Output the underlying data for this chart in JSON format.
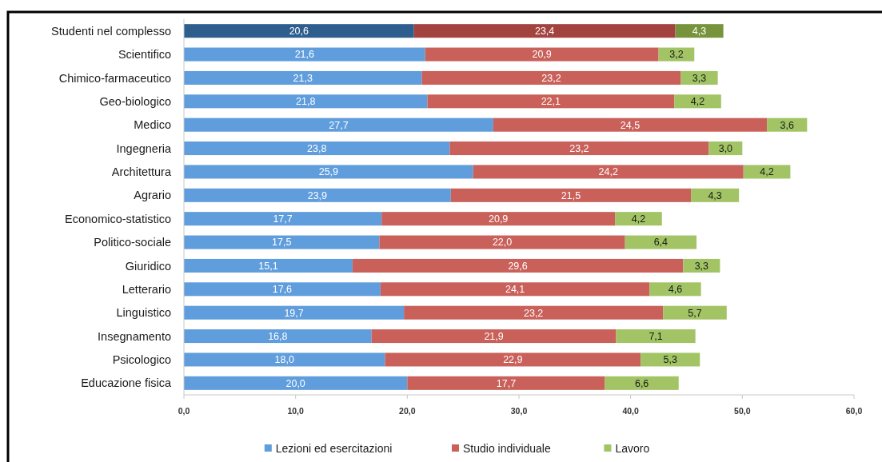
{
  "chart_data": {
    "type": "bar",
    "orientation": "horizontal",
    "stacked": true,
    "categories": [
      "Studenti nel complesso",
      "Scientifico",
      "Chimico-farmaceutico",
      "Geo-biologico",
      "Medico",
      "Ingegneria",
      "Architettura",
      "Agrario",
      "Economico-statistico",
      "Politico-sociale",
      "Giuridico",
      "Letterario",
      "Linguistico",
      "Insegnamento",
      "Psicologico",
      "Educazione fisica"
    ],
    "series": [
      {
        "name": "Lezioni ed esercitazioni",
        "color": "#5f9ddc",
        "colors": [
          "#2e5e8e",
          "#5f9ddc",
          "#5f9ddc",
          "#5f9ddc",
          "#5f9ddc",
          "#5f9ddc",
          "#5f9ddc",
          "#5f9ddc",
          "#5f9ddc",
          "#5f9ddc",
          "#5f9ddc",
          "#5f9ddc",
          "#5f9ddc",
          "#5f9ddc",
          "#5f9ddc",
          "#5f9ddc"
        ],
        "values": [
          20.6,
          21.6,
          21.3,
          21.8,
          27.7,
          23.8,
          25.9,
          23.9,
          17.7,
          17.5,
          15.1,
          17.6,
          19.7,
          16.8,
          18.0,
          20.0
        ],
        "value_labels": [
          "20,6",
          "21,6",
          "21,3",
          "21,8",
          "27,7",
          "23,8",
          "25,9",
          "23,9",
          "17,7",
          "17,5",
          "15,1",
          "17,6",
          "19,7",
          "16,8",
          "18,0",
          "20,0"
        ]
      },
      {
        "name": "Studio individuale",
        "color": "#c9605a",
        "colors": [
          "#a3433f",
          "#c9605a",
          "#c9605a",
          "#c9605a",
          "#c9605a",
          "#c9605a",
          "#c9605a",
          "#c9605a",
          "#c9605a",
          "#c9605a",
          "#c9605a",
          "#c9605a",
          "#c9605a",
          "#c9605a",
          "#c9605a",
          "#c9605a"
        ],
        "values": [
          23.4,
          20.9,
          23.2,
          22.1,
          24.5,
          23.2,
          24.2,
          21.5,
          20.9,
          22.0,
          29.6,
          24.1,
          23.2,
          21.9,
          22.9,
          17.7
        ],
        "value_labels": [
          "23,4",
          "20,9",
          "23,2",
          "22,1",
          "24,5",
          "23,2",
          "24,2",
          "21,5",
          "20,9",
          "22,0",
          "29,6",
          "24,1",
          "23,2",
          "21,9",
          "22,9",
          "17,7"
        ]
      },
      {
        "name": "Lavoro",
        "color": "#a2c465",
        "colors": [
          "#77933c",
          "#a2c465",
          "#a2c465",
          "#a2c465",
          "#a2c465",
          "#a2c465",
          "#a2c465",
          "#a2c465",
          "#a2c465",
          "#a2c465",
          "#a2c465",
          "#a2c465",
          "#a2c465",
          "#a2c465",
          "#a2c465",
          "#a2c465"
        ],
        "values": [
          4.3,
          3.2,
          3.3,
          4.2,
          3.6,
          3.0,
          4.2,
          4.3,
          4.2,
          6.4,
          3.3,
          4.6,
          5.7,
          7.1,
          5.3,
          6.6
        ],
        "value_labels": [
          "4,3",
          "3,2",
          "3,3",
          "4,2",
          "3,6",
          "3,0",
          "4,2",
          "4,3",
          "4,2",
          "6,4",
          "3,3",
          "4,6",
          "5,7",
          "7,1",
          "5,3",
          "6,6"
        ]
      }
    ],
    "xlim": [
      0,
      60
    ],
    "xticks": [
      {
        "value": 0,
        "label": "0,0"
      },
      {
        "value": 10,
        "label": "10,0"
      },
      {
        "value": 20,
        "label": "20,0"
      },
      {
        "value": 30,
        "label": "30,0"
      },
      {
        "value": 40,
        "label": "40,0"
      },
      {
        "value": 50,
        "label": "50,0"
      },
      {
        "value": 60,
        "label": "60,0"
      }
    ],
    "legend": "bottom"
  }
}
